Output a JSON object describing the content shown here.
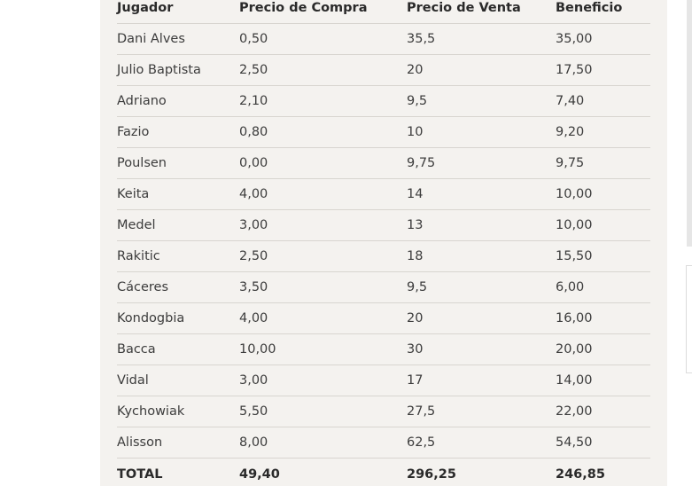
{
  "table": {
    "headers": [
      "Jugador",
      "Precio de Compra",
      "Precio de Venta",
      "Beneficio"
    ],
    "rows": [
      [
        "Dani Alves",
        "0,50",
        "35,5",
        "35,00"
      ],
      [
        "Julio Baptista",
        "2,50",
        "20",
        "17,50"
      ],
      [
        "Adriano",
        "2,10",
        "9,5",
        "7,40"
      ],
      [
        "Fazio",
        "0,80",
        "10",
        "9,20"
      ],
      [
        "Poulsen",
        "0,00",
        "9,75",
        "9,75"
      ],
      [
        "Keita",
        "4,00",
        "14",
        "10,00"
      ],
      [
        "Medel",
        "3,00",
        "13",
        "10,00"
      ],
      [
        "Rakitic",
        "2,50",
        "18",
        "15,50"
      ],
      [
        "Cáceres",
        "3,50",
        "9,5",
        "6,00"
      ],
      [
        "Kondogbia",
        "4,00",
        "20",
        "16,00"
      ],
      [
        "Bacca",
        "10,00",
        "30",
        "20,00"
      ],
      [
        "Vidal",
        "3,00",
        "17",
        "14,00"
      ],
      [
        "Kychowiak",
        "5,50",
        "27,5",
        "22,00"
      ],
      [
        "Alisson",
        "8,00",
        "62,5",
        "54,50"
      ]
    ],
    "total": [
      "TOTAL",
      "49,40",
      "296,25",
      "246,85"
    ]
  }
}
